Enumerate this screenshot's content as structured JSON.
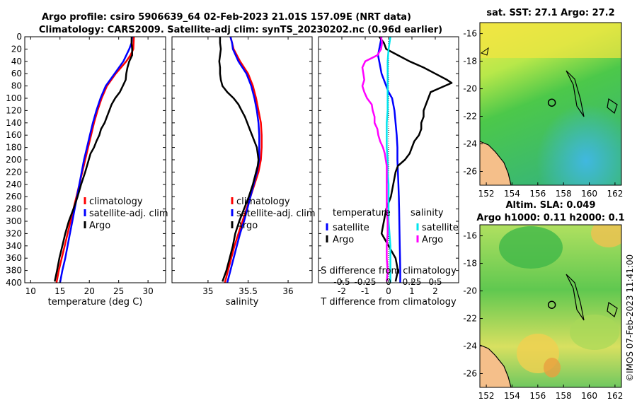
{
  "figure": {
    "title_line1": "Argo profile: csiro 5906639_64 02-Feb-2023 21.01S 157.09E (NRT data)",
    "title_line2": "Climatology: CARS2009. Satellite-adj clim: synTS_20230202.nc (0.96d earlier)",
    "credit": "©IMOS 07-Feb-2023 11:41:00"
  },
  "colors": {
    "climatology": "#ff0000",
    "satellite": "#0000ff",
    "argo": "#000000",
    "salinity_satellite": "#00e5ee",
    "salinity_argo": "#ff00ff",
    "land": "#f5bf8a"
  },
  "chart_data": [
    {
      "type": "line",
      "id": "temperature-panel",
      "xlabel": "temperature (deg C)",
      "xlim": [
        9,
        33
      ],
      "ylim": [
        400,
        0
      ],
      "xticks": [
        "10",
        "15",
        "20",
        "25",
        "30"
      ],
      "xtick_values": [
        10,
        15,
        20,
        25,
        30
      ],
      "yticks": [
        "0",
        "20",
        "40",
        "60",
        "80",
        "100",
        "120",
        "140",
        "160",
        "180",
        "200",
        "220",
        "240",
        "260",
        "280",
        "300",
        "320",
        "340",
        "360",
        "380",
        "400"
      ],
      "ytick_values": [
        0,
        20,
        40,
        60,
        80,
        100,
        120,
        140,
        160,
        180,
        200,
        220,
        240,
        260,
        280,
        300,
        320,
        340,
        360,
        380,
        400
      ],
      "legend": [
        "climatology",
        "satellite-adj. clim",
        "Argo"
      ],
      "series": [
        {
          "name": "climatology",
          "color": "#ff0000",
          "depth": [
            0,
            20,
            30,
            40,
            60,
            80,
            100,
            120,
            140,
            160,
            180,
            200,
            220,
            240,
            260,
            280,
            300,
            320,
            340,
            360,
            380,
            400
          ],
          "values": [
            27.6,
            27.5,
            27.0,
            26.3,
            24.5,
            23.0,
            22.1,
            21.4,
            20.8,
            20.3,
            19.8,
            19.3,
            18.8,
            18.3,
            17.8,
            17.3,
            16.8,
            16.3,
            15.8,
            15.3,
            14.8,
            14.4
          ]
        },
        {
          "name": "satellite-adj. clim",
          "color": "#0000ff",
          "depth": [
            0,
            10,
            20,
            40,
            60,
            80,
            100,
            120,
            140,
            160,
            180,
            200,
            220,
            240,
            260,
            280,
            300,
            320,
            340,
            360,
            380,
            400
          ],
          "values": [
            27.3,
            27.2,
            26.8,
            25.8,
            24.3,
            22.8,
            21.9,
            21.2,
            20.6,
            20.1,
            19.6,
            19.1,
            18.7,
            18.3,
            17.9,
            17.5,
            17.1,
            16.7,
            16.3,
            15.9,
            15.4,
            15.0
          ]
        },
        {
          "name": "Argo",
          "color": "#000000",
          "depth": [
            0,
            10,
            20,
            30,
            40,
            50,
            60,
            70,
            80,
            90,
            100,
            110,
            120,
            130,
            140,
            150,
            160,
            170,
            180,
            190,
            200,
            210,
            220,
            240,
            260,
            280,
            300,
            320,
            340,
            360,
            380,
            398
          ],
          "values": [
            27.2,
            27.2,
            27.3,
            27.3,
            26.8,
            26.5,
            26.3,
            26.2,
            25.7,
            25.2,
            24.4,
            23.8,
            23.4,
            23.0,
            22.6,
            22.0,
            21.7,
            21.2,
            20.8,
            20.2,
            19.9,
            19.6,
            19.3,
            18.6,
            18.0,
            17.3,
            16.5,
            15.9,
            15.4,
            14.9,
            14.5,
            14.1
          ]
        }
      ]
    },
    {
      "type": "line",
      "id": "salinity-panel",
      "xlabel": "salinity",
      "xlim": [
        34.55,
        36.3
      ],
      "ylim": [
        400,
        0
      ],
      "xticks": [
        "35",
        "35.5",
        "36"
      ],
      "xtick_values": [
        35,
        35.5,
        36
      ],
      "legend": [
        "climatology",
        "satellite-adj. clim",
        "Argo"
      ],
      "series": [
        {
          "name": "climatology",
          "color": "#ff0000",
          "depth": [
            0,
            10,
            20,
            40,
            60,
            80,
            100,
            120,
            140,
            160,
            180,
            200,
            220,
            240,
            260,
            280,
            300,
            320,
            340,
            360,
            380,
            400
          ],
          "values": [
            35.28,
            35.3,
            35.32,
            35.4,
            35.5,
            35.56,
            35.6,
            35.63,
            35.66,
            35.67,
            35.67,
            35.66,
            35.63,
            35.58,
            35.53,
            35.48,
            35.43,
            35.38,
            35.33,
            35.29,
            35.25,
            35.21
          ]
        },
        {
          "name": "satellite-adj. clim",
          "color": "#0000ff",
          "depth": [
            0,
            10,
            20,
            40,
            60,
            80,
            100,
            120,
            140,
            160,
            180,
            200,
            220,
            240,
            260,
            280,
            300,
            320,
            340,
            360,
            380,
            400
          ],
          "values": [
            35.28,
            35.3,
            35.31,
            35.38,
            35.48,
            35.54,
            35.58,
            35.61,
            35.63,
            35.64,
            35.64,
            35.64,
            35.61,
            35.57,
            35.53,
            35.49,
            35.45,
            35.4,
            35.36,
            35.32,
            35.28,
            35.24
          ]
        },
        {
          "name": "Argo",
          "color": "#000000",
          "depth": [
            0,
            10,
            20,
            30,
            40,
            50,
            60,
            70,
            80,
            90,
            100,
            110,
            120,
            130,
            140,
            150,
            160,
            170,
            180,
            190,
            200,
            210,
            220,
            240,
            260,
            280,
            300,
            320,
            340,
            360,
            380,
            398
          ],
          "values": [
            35.15,
            35.15,
            35.16,
            35.15,
            35.14,
            35.15,
            35.15,
            35.16,
            35.18,
            35.24,
            35.32,
            35.38,
            35.42,
            35.46,
            35.49,
            35.52,
            35.55,
            35.58,
            35.61,
            35.62,
            35.63,
            35.62,
            35.6,
            35.56,
            35.51,
            35.45,
            35.39,
            35.34,
            35.31,
            35.27,
            35.23,
            35.18
          ]
        }
      ]
    },
    {
      "type": "line",
      "id": "difference-panel",
      "xlabel": "T difference from climatology",
      "xlabel_top": "S difference from climatology",
      "xlim": [
        -3,
        3
      ],
      "ylim": [
        400,
        0
      ],
      "xticks": [
        "-2",
        "-1",
        "0",
        "1",
        "2"
      ],
      "xtick_values": [
        -2,
        -1,
        0,
        1,
        2
      ],
      "sticks": [
        "-0.5",
        "-0.25",
        "0",
        "0.25",
        "0.5"
      ],
      "stick_values": [
        -0.5,
        -0.25,
        0,
        0.25,
        0.5
      ],
      "s_scale_factor": 4,
      "legend_left_title": "temperature",
      "legend_right_title": "salinity",
      "legend_left": [
        "satellite",
        "Argo"
      ],
      "legend_right": [
        "satellite",
        "Argo"
      ],
      "series": [
        {
          "name": "T satellite",
          "color": "#0000ff",
          "depth": [
            0,
            10,
            20,
            30,
            40,
            60,
            80,
            90,
            100,
            120,
            140,
            160,
            180,
            200,
            220,
            240,
            260,
            280,
            300,
            320,
            340,
            360,
            380,
            400
          ],
          "values": [
            -0.3,
            -0.35,
            -0.4,
            -0.45,
            -0.4,
            -0.3,
            -0.1,
            0.0,
            0.15,
            0.25,
            0.3,
            0.35,
            0.38,
            0.38,
            0.4,
            0.42,
            0.44,
            0.45,
            0.46,
            0.47,
            0.48,
            0.49,
            0.5,
            0.5
          ]
        },
        {
          "name": "T Argo",
          "color": "#000000",
          "depth": [
            0,
            10,
            20,
            30,
            40,
            50,
            60,
            70,
            75,
            80,
            90,
            100,
            110,
            120,
            130,
            140,
            150,
            160,
            170,
            180,
            190,
            200,
            210,
            220,
            240,
            260,
            280,
            300,
            320,
            340,
            360,
            380,
            398
          ],
          "values": [
            -0.4,
            -0.2,
            -0.1,
            0.4,
            0.9,
            1.5,
            2.0,
            2.5,
            2.7,
            2.4,
            1.8,
            1.7,
            1.6,
            1.5,
            1.5,
            1.4,
            1.4,
            1.3,
            1.1,
            1.0,
            0.9,
            0.7,
            0.4,
            0.3,
            0.2,
            0.1,
            -0.1,
            -0.2,
            -0.3,
            0.0,
            0.3,
            0.4,
            0.3
          ]
        },
        {
          "name": "S satellite",
          "color": "#00e5ee",
          "depth": [
            0,
            10,
            20,
            40,
            60,
            80,
            100,
            120,
            140,
            160,
            180,
            200,
            220,
            240,
            260,
            280,
            300,
            320,
            340,
            360,
            380,
            400
          ],
          "values": [
            0.02,
            0.01,
            0.0,
            -0.01,
            -0.01,
            -0.01,
            -0.01,
            -0.01,
            -0.02,
            -0.02,
            -0.02,
            -0.01,
            -0.01,
            0.0,
            0.0,
            0.0,
            0.0,
            0.01,
            0.02,
            0.02,
            0.02,
            0.02
          ]
        },
        {
          "name": "S Argo",
          "color": "#ff00ff",
          "depth": [
            0,
            10,
            20,
            30,
            40,
            50,
            60,
            70,
            80,
            90,
            100,
            110,
            120,
            130,
            140,
            150,
            160,
            170,
            180,
            190,
            200,
            210,
            220,
            240,
            260,
            280,
            300,
            320,
            340,
            360,
            380,
            398
          ],
          "values": [
            -0.08,
            -0.07,
            -0.08,
            -0.12,
            -0.25,
            -0.28,
            -0.27,
            -0.26,
            -0.28,
            -0.26,
            -0.23,
            -0.18,
            -0.17,
            -0.15,
            -0.15,
            -0.12,
            -0.11,
            -0.09,
            -0.06,
            -0.04,
            -0.03,
            -0.02,
            -0.02,
            -0.02,
            -0.02,
            -0.02,
            -0.01,
            -0.01,
            -0.02,
            -0.02,
            -0.01,
            -0.02
          ]
        }
      ]
    },
    {
      "type": "heatmap",
      "id": "sst-map",
      "title": "sat. SST: 27.1 Argo: 27.2",
      "xticks": [
        "152",
        "154",
        "156",
        "158",
        "160",
        "162"
      ],
      "xtick_values": [
        152,
        154,
        156,
        158,
        160,
        162
      ],
      "yticks": [
        "-16",
        "-18",
        "-20",
        "-22",
        "-24",
        "-26"
      ],
      "ytick_values": [
        -16,
        -18,
        -20,
        -22,
        -24,
        -26
      ],
      "xlim": [
        151.5,
        162.5
      ],
      "ylim": [
        -15.2,
        -27.0
      ],
      "marker": {
        "lon": 157.09,
        "lat": -21.01
      }
    },
    {
      "type": "heatmap",
      "id": "sla-map",
      "title_line1": "Altim. SLA: 0.049",
      "title_line2": "Argo h1000: 0.11 h2000: 0.1",
      "xticks": [
        "152",
        "154",
        "156",
        "158",
        "160",
        "162"
      ],
      "xtick_values": [
        152,
        154,
        156,
        158,
        160,
        162
      ],
      "yticks": [
        "-16",
        "-18",
        "-20",
        "-22",
        "-24",
        "-26"
      ],
      "ytick_values": [
        -16,
        -18,
        -20,
        -22,
        -24,
        -26
      ],
      "xlim": [
        151.5,
        162.5
      ],
      "ylim": [
        -15.2,
        -27.0
      ],
      "marker": {
        "lon": 157.09,
        "lat": -21.01
      }
    }
  ]
}
